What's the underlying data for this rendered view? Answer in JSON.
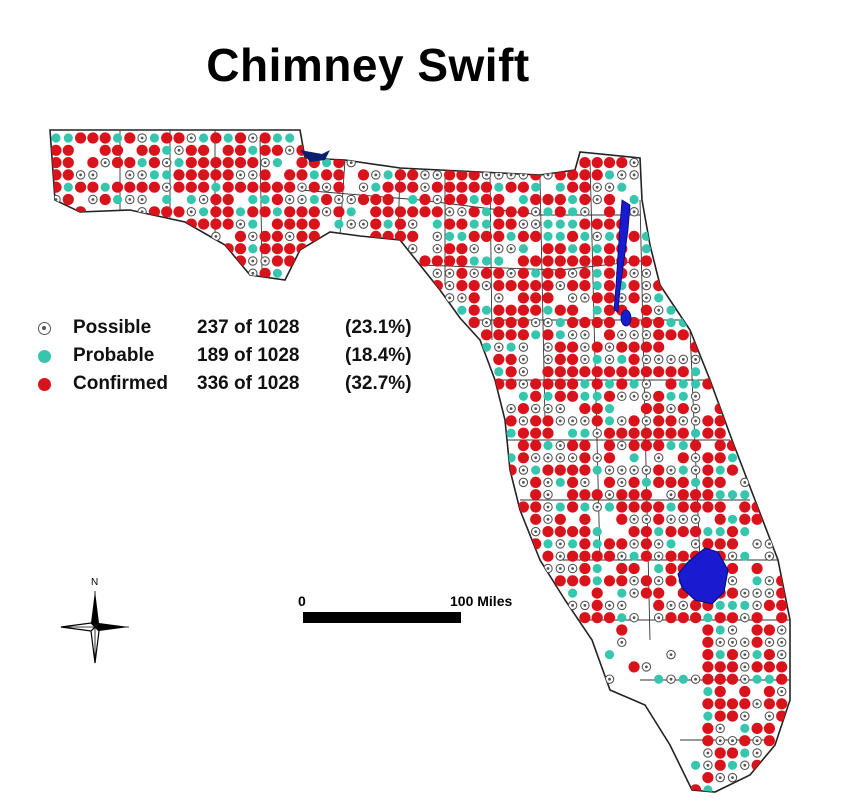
{
  "title": "Chimney Swift",
  "legend": [
    {
      "key": "possible",
      "label": "Possible",
      "count": "237 of 1028",
      "percent": "(23.1%)",
      "color": "#ffffff"
    },
    {
      "key": "probable",
      "label": "Probable",
      "count": "189 of 1028",
      "percent": "(18.4%)",
      "color": "#36c6ae"
    },
    {
      "key": "confirmed",
      "label": "Confirmed",
      "count": "336 of 1028",
      "percent": "(32.7%)",
      "color": "#d8131c"
    }
  ],
  "scale": {
    "start": "0",
    "end": "100 Miles"
  },
  "compass": {
    "north_label": "N"
  },
  "colors": {
    "confirmed": "#d8131c",
    "probable": "#36c6ae",
    "possible_ring": "#555555",
    "water": "#1a1ad0"
  }
}
